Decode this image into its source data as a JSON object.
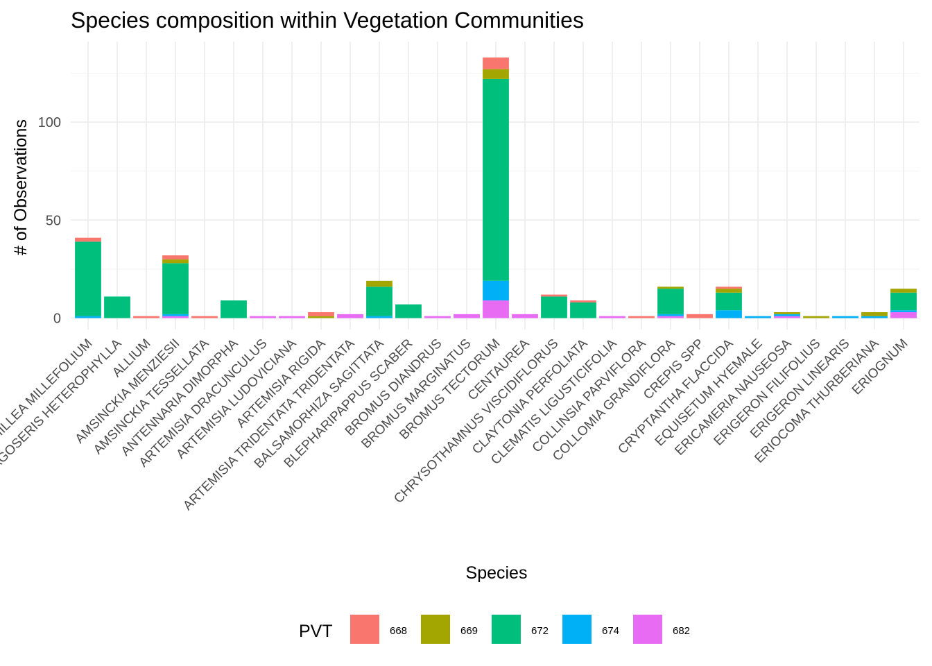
{
  "chart_data": {
    "type": "bar",
    "stacked": true,
    "title": "Species composition within Vegetation Communities",
    "xlabel": "Species",
    "ylabel": "# of Observations",
    "ylim": [
      0,
      140
    ],
    "yticks": [
      0,
      50,
      100
    ],
    "grid": true,
    "legend_position": "bottom",
    "legend_title": "PVT",
    "categories": [
      "ACHILLEA MILLEFOLIUM",
      "AGOSERIS HETEROPHYLLA",
      "ALLIUM",
      "AMSINCKIA MENZIESII",
      "AMSINCKIA TESSELLATA",
      "ANTENNARIA DIMORPHA",
      "ARTEMISIA DRACUNCULUS",
      "ARTEMISIA LUDOVICIANA",
      "ARTEMISIA RIGIDA",
      "ARTEMISIA TRIDENTATA TRIDENTATA",
      "BALSAMORHIZA SAGITTATA",
      "BLEPHARIPAPPUS SCABER",
      "BROMUS DIANDRUS",
      "BROMUS MARGINATUS",
      "BROMUS TECTORUM",
      "CENTAUREA",
      "CHRYSOTHAMNUS VISCIDIFLORUS",
      "CLAYTONIA PERFOLIATA",
      "CLEMATIS LIGUSTICIFOLIA",
      "COLLINSIA PARVIFLORA",
      "COLLOMIA GRANDIFLORA",
      "CREPIS SPP",
      "CRYPTANTHA FLACCIDA",
      "EQUISETUM HYEMALE",
      "ERICAMERIA NAUSEOSA",
      "ERIGERON FILIFOLIUS",
      "ERIGERON LINEARIS",
      "ERIOCOMA THURBERIANA",
      "ERIOGNUM"
    ],
    "series": [
      {
        "name": "682",
        "color": "#E76BF3",
        "values": [
          0,
          0,
          0,
          1,
          0,
          0,
          1,
          1,
          0,
          2,
          0,
          0,
          1,
          2,
          9,
          2,
          0,
          0,
          1,
          0,
          1,
          0,
          0,
          0,
          1,
          0,
          0,
          0,
          3
        ]
      },
      {
        "name": "674",
        "color": "#00B0F6",
        "values": [
          1,
          0,
          0,
          1,
          0,
          0,
          0,
          0,
          0,
          0,
          1,
          0,
          0,
          0,
          10,
          0,
          0,
          0,
          0,
          0,
          1,
          0,
          4,
          1,
          1,
          0,
          1,
          1,
          1
        ]
      },
      {
        "name": "672",
        "color": "#00BF7D",
        "values": [
          38,
          11,
          0,
          26,
          0,
          9,
          0,
          0,
          0,
          0,
          15,
          7,
          0,
          0,
          103,
          0,
          11,
          8,
          0,
          0,
          13,
          0,
          9,
          0,
          0,
          0,
          0,
          0,
          9
        ]
      },
      {
        "name": "669",
        "color": "#A3A500",
        "values": [
          0,
          0,
          0,
          2,
          0,
          0,
          0,
          0,
          1,
          0,
          3,
          0,
          0,
          0,
          5,
          0,
          0,
          0,
          0,
          0,
          1,
          0,
          2,
          0,
          1,
          1,
          0,
          2,
          2
        ]
      },
      {
        "name": "668",
        "color": "#F8766D",
        "values": [
          2,
          0,
          1,
          2,
          1,
          0,
          0,
          0,
          2,
          0,
          0,
          0,
          0,
          0,
          6,
          0,
          1,
          1,
          0,
          1,
          0,
          2,
          1,
          0,
          0,
          0,
          0,
          0,
          0
        ]
      }
    ]
  }
}
